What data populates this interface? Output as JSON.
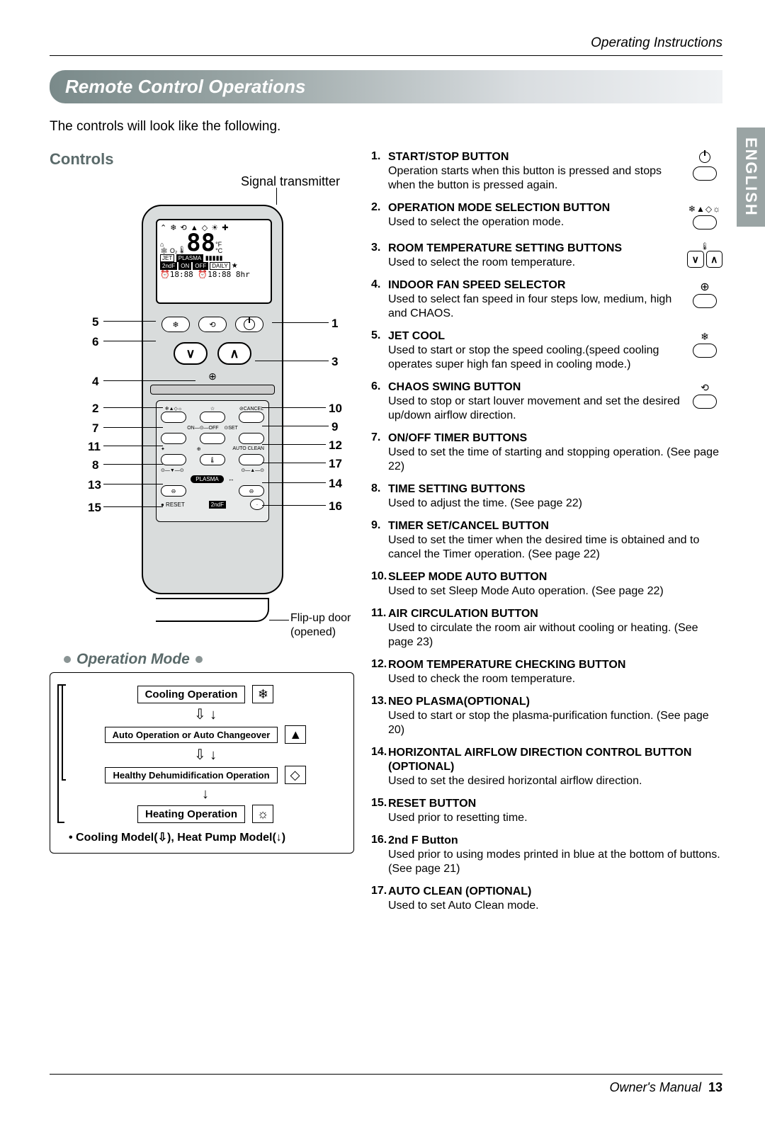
{
  "header": {
    "section": "Operating Instructions"
  },
  "title": "Remote Control Operations",
  "intro": "The controls will look like the following.",
  "controls_heading": "Controls",
  "signal_label": "Signal transmitter",
  "flip_door_label_1": "Flip-up door",
  "flip_door_label_2": "(opened)",
  "callouts_left": [
    "5",
    "6",
    "4",
    "2",
    "7",
    "11",
    "8",
    "13",
    "15"
  ],
  "callouts_right": [
    "1",
    "3",
    "10",
    "9",
    "12",
    "17",
    "14",
    "16"
  ],
  "lcd": {
    "row1": "⌃ ❄ ⟲ ▲ ◇ ☀ ✚",
    "temp": "88",
    "jet": "JET",
    "plasma": "PLASMA",
    "boxes": [
      "2ndF",
      "ON",
      "OFF",
      "DAILY"
    ],
    "row5": "⏰18:88  ⏰18:88  8hr"
  },
  "opmode": {
    "title": "Operation Mode",
    "rows": [
      {
        "label": "Cooling Operation",
        "icon": "❄"
      },
      {
        "label": "Auto Operation or Auto Changeover",
        "icon": "▲"
      },
      {
        "label": "Healthy Dehumidification Operation",
        "icon": "◇"
      },
      {
        "label": "Heating Operation",
        "icon": "☼"
      }
    ],
    "arrows_with_loop": "⇩ ↓",
    "arrow_down": "↓",
    "note": "• Cooling Model(⇩), Heat Pump Model(↓)"
  },
  "items": [
    {
      "n": "1.",
      "title": "START/STOP BUTTON",
      "desc": "Operation starts when this button is pressed and stops when the button is pressed again.",
      "icon": "power"
    },
    {
      "n": "2.",
      "title": "OPERATION MODE SELECTION BUTTON",
      "desc": "Used to select the operation mode.",
      "icon": "mode"
    },
    {
      "n": "3.",
      "title": "ROOM TEMPERATURE SETTING BUTTONS",
      "desc": "Used to select the room temperature.",
      "icon": "updown"
    },
    {
      "n": "4.",
      "title": "INDOOR FAN SPEED SELECTOR",
      "desc": "Used to select fan speed in four steps low, medium, high and CHAOS.",
      "icon": "fan"
    },
    {
      "n": "5.",
      "title": "JET COOL",
      "desc": "Used to start or stop the speed cooling.(speed cooling operates super high fan speed in cooling mode.)",
      "icon": "jet"
    },
    {
      "n": "6.",
      "title": "CHAOS SWING BUTTON",
      "desc": "Used to stop or start louver movement and set the desired up/down airflow direction.",
      "icon": "swing"
    },
    {
      "n": "7.",
      "title": "ON/OFF TIMER BUTTONS",
      "desc": "Used to set the time of starting and stopping operation. (See page 22)",
      "icon": ""
    },
    {
      "n": "8.",
      "title": "TIME SETTING BUTTONS",
      "desc": "Used to adjust the time. (See page 22)",
      "icon": ""
    },
    {
      "n": "9.",
      "title": "TIMER SET/CANCEL BUTTON",
      "desc": "Used to set the timer when the desired time is obtained and to cancel the Timer operation. (See page 22)",
      "icon": ""
    },
    {
      "n": "10.",
      "title": "SLEEP MODE AUTO BUTTON",
      "desc": "Used to set Sleep Mode Auto operation. (See page 22)",
      "icon": ""
    },
    {
      "n": "11.",
      "title": "AIR CIRCULATION BUTTON",
      "desc": "Used to circulate the room air without cooling or heating. (See page 23)",
      "icon": ""
    },
    {
      "n": "12.",
      "title": "ROOM TEMPERATURE CHECKING BUTTON",
      "desc": "Used to check the room temperature.",
      "icon": ""
    },
    {
      "n": "13.",
      "title": "NEO PLASMA(OPTIONAL)",
      "desc": "Used to start or stop the plasma-purification function. (See page 20)",
      "icon": ""
    },
    {
      "n": "14.",
      "title": "HORIZONTAL AIRFLOW DIRECTION CONTROL BUTTON (OPTIONAL)",
      "desc": "Used to set the desired horizontal airflow direction.",
      "icon": ""
    },
    {
      "n": "15.",
      "title": "RESET BUTTON",
      "desc": "Used prior to resetting time.",
      "icon": ""
    },
    {
      "n": "16.",
      "title": "2nd F Button",
      "desc": "Used prior to using modes printed in blue at the bottom of buttons. (See page 21)",
      "icon": ""
    },
    {
      "n": "17.",
      "title": "AUTO CLEAN (OPTIONAL)",
      "desc": "Used to set Auto Clean mode.",
      "icon": ""
    }
  ],
  "lang_tab": "ENGLISH",
  "footer": {
    "text": "Owner's Manual",
    "page": "13"
  },
  "colors": {
    "title_grad_start": "#7a8a8a",
    "title_grad_end": "#f0f2f4",
    "heading": "#5a6a6a",
    "remote_body": "#d9dcdc",
    "tab": "#9aa4a4"
  }
}
